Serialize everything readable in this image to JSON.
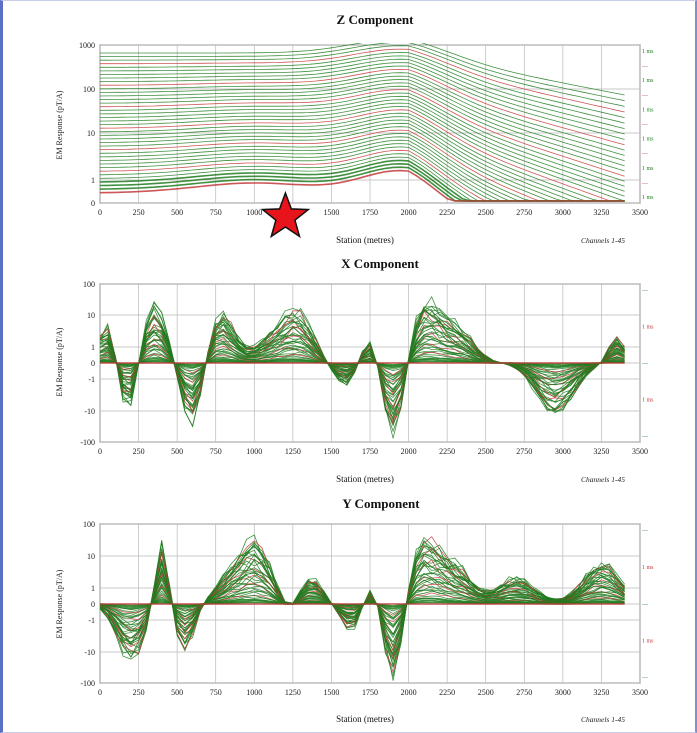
{
  "chart_data": [
    {
      "type": "line",
      "title": "Z Component",
      "xlabel": "Station (metres)",
      "ylabel": "EM Response (pT/A)",
      "channels_note": "Channels 1-45",
      "xlim": [
        0,
        3500
      ],
      "x_ticks": [
        "0",
        "250",
        "500",
        "750",
        "1000",
        "1250",
        "1500",
        "1750",
        "2000",
        "2250",
        "2500",
        "2750",
        "3000",
        "3250",
        "3500"
      ],
      "y_ticks": [
        "1000",
        "100",
        "10",
        "1",
        "0"
      ],
      "y_scale": "log-linear",
      "grid": true,
      "series_colors": [
        "#1e7d1e",
        "#c23a3a"
      ],
      "marker": {
        "type": "star",
        "color": "#e8141c",
        "station": 1150
      },
      "channel_tags": [
        "1 ms",
        "",
        "1 ms",
        "",
        "1 ms",
        "",
        "1 ms",
        "",
        "1 ms",
        "",
        "1 ms"
      ]
    },
    {
      "type": "line",
      "title": "X Component",
      "xlabel": "Station (metres)",
      "ylabel": "EM Response (pT/A)",
      "channels_note": "Channels 1-45",
      "xlim": [
        0,
        3500
      ],
      "x_ticks": [
        "0",
        "250",
        "500",
        "750",
        "1000",
        "1250",
        "1500",
        "1750",
        "2000",
        "2250",
        "2500",
        "2750",
        "3000",
        "3250",
        "3500"
      ],
      "y_ticks": [
        "100",
        "10",
        "1",
        "0",
        "-1",
        "-10",
        "-100"
      ],
      "y_scale": "symlog",
      "grid": true,
      "series_colors": [
        "#1e7d1e",
        "#c23a3a"
      ],
      "channel_tags": [
        "",
        "1 ms",
        "",
        "1 ms",
        ""
      ]
    },
    {
      "type": "line",
      "title": "Y Component",
      "xlabel": "Station (metres)",
      "ylabel": "EM Response (pT/A)",
      "channels_note": "Channels 1-45",
      "xlim": [
        0,
        3500
      ],
      "x_ticks": [
        "0",
        "250",
        "500",
        "750",
        "1000",
        "1250",
        "1500",
        "1750",
        "2000",
        "2250",
        "2500",
        "2750",
        "3000",
        "3250",
        "3500"
      ],
      "y_ticks": [
        "100",
        "10",
        "1",
        "0",
        "-1",
        "-10",
        "-100"
      ],
      "y_scale": "symlog",
      "grid": true,
      "series_colors": [
        "#1e7d1e",
        "#c23a3a"
      ],
      "channel_tags": [
        "",
        "1 ms",
        "",
        "1 ms",
        ""
      ]
    }
  ]
}
